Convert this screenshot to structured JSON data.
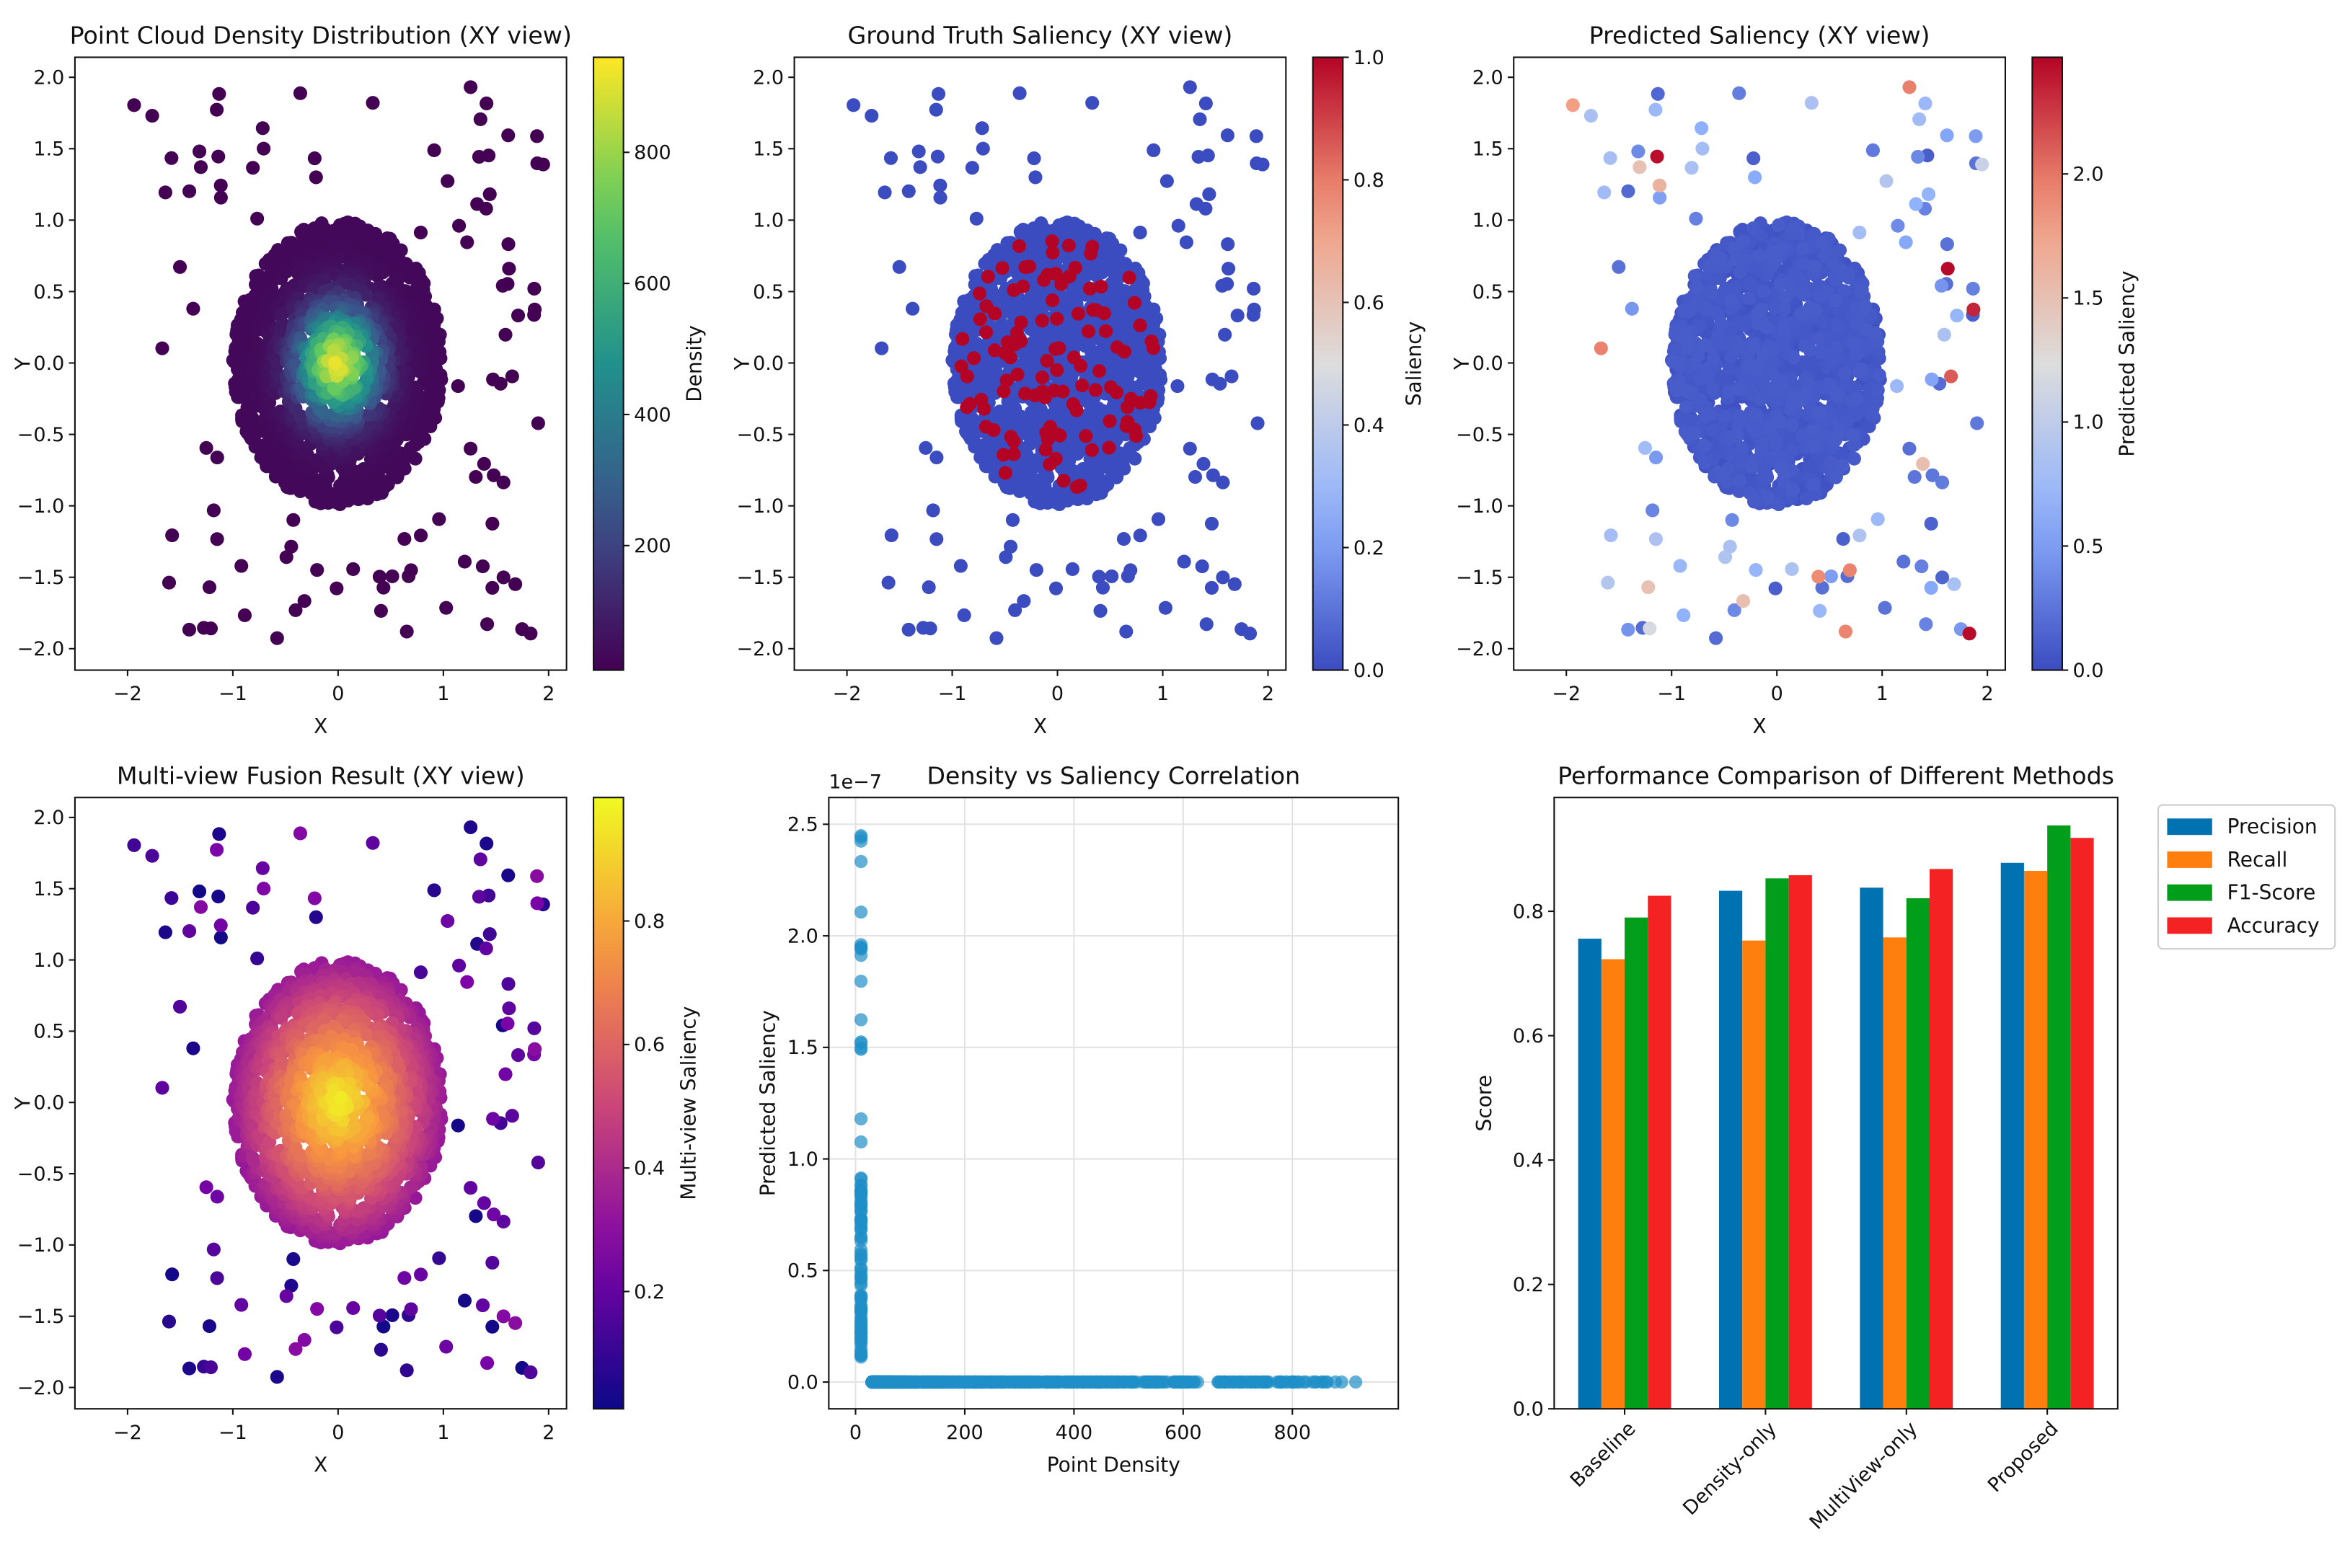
{
  "chart_data": [
    {
      "type": "scatter",
      "title": "Point Cloud Density Distribution (XY view)",
      "xlabel": "X",
      "ylabel": "Y",
      "xticks": [
        "−2",
        "−1",
        "0",
        "1",
        "2"
      ],
      "xtick_values": [
        -2,
        -1,
        0,
        1,
        2
      ],
      "yticks": [
        "2.0",
        "1.5",
        "1.0",
        "0.5",
        "0.0",
        "−0.5",
        "−1.0",
        "−1.5",
        "−2.0"
      ],
      "ytick_values": [
        2,
        1.5,
        1,
        0.5,
        0,
        -0.5,
        -1,
        -1.5,
        -2
      ],
      "xlim": [
        -2.5,
        2.17
      ],
      "ylim": [
        -2.15,
        2.14
      ],
      "color_by": "density",
      "colorbar": {
        "label": "Density",
        "cmap": "viridis",
        "range": [
          10,
          945
        ],
        "ticks": [
          "800",
          "600",
          "400",
          "200"
        ],
        "tick_values": [
          800,
          600,
          400,
          200
        ]
      }
    },
    {
      "type": "scatter",
      "title": "Ground Truth Saliency (XY view)",
      "xlabel": "X",
      "ylabel": "Y",
      "xticks": [
        "−2",
        "−1",
        "0",
        "1",
        "2"
      ],
      "xtick_values": [
        -2,
        -1,
        0,
        1,
        2
      ],
      "yticks": [
        "2.0",
        "1.5",
        "1.0",
        "0.5",
        "0.0",
        "−0.5",
        "−1.0",
        "−1.5",
        "−2.0"
      ],
      "ytick_values": [
        2,
        1.5,
        1,
        0.5,
        0,
        -0.5,
        -1,
        -1.5,
        -2
      ],
      "xlim": [
        -2.5,
        2.17
      ],
      "ylim": [
        -2.15,
        2.14
      ],
      "color_by": "ground_truth",
      "colorbar": {
        "label": "Saliency",
        "cmap": "coolwarm",
        "range": [
          0,
          1
        ],
        "ticks": [
          "1.0",
          "0.8",
          "0.6",
          "0.4",
          "0.2",
          "0.0"
        ],
        "tick_values": [
          1,
          0.8,
          0.6,
          0.4,
          0.2,
          0
        ]
      }
    },
    {
      "type": "scatter",
      "title": "Predicted Saliency (XY view)",
      "xlabel": "X",
      "ylabel": "Y",
      "xticks": [
        "−2",
        "−1",
        "0",
        "1",
        "2"
      ],
      "xtick_values": [
        -2,
        -1,
        0,
        1,
        2
      ],
      "yticks": [
        "2.0",
        "1.5",
        "1.0",
        "0.5",
        "0.0",
        "−0.5",
        "−1.0",
        "−1.5",
        "−2.0"
      ],
      "ytick_values": [
        2,
        1.5,
        1,
        0.5,
        0,
        -0.5,
        -1,
        -1.5,
        -2
      ],
      "xlim": [
        -2.5,
        2.17
      ],
      "ylim": [
        -2.15,
        2.14
      ],
      "color_by": "predicted",
      "colorbar": {
        "label": "Predicted Saliency",
        "cmap": "coolwarm",
        "range": [
          0,
          2.47
        ],
        "ticks": [
          "2.0",
          "1.5",
          "1.0",
          "0.5",
          "0.0"
        ],
        "tick_values": [
          2,
          1.5,
          1,
          0.5,
          0
        ]
      }
    },
    {
      "type": "scatter",
      "title": "Multi-view Fusion Result (XY view)",
      "xlabel": "X",
      "ylabel": "Y",
      "xticks": [
        "−2",
        "−1",
        "0",
        "1",
        "2"
      ],
      "xtick_values": [
        -2,
        -1,
        0,
        1,
        2
      ],
      "yticks": [
        "2.0",
        "1.5",
        "1.0",
        "0.5",
        "0.0",
        "−0.5",
        "−1.0",
        "−1.5",
        "−2.0"
      ],
      "ytick_values": [
        2,
        1.5,
        1,
        0.5,
        0,
        -0.5,
        -1,
        -1.5,
        -2
      ],
      "xlim": [
        -2.5,
        2.17
      ],
      "ylim": [
        -2.15,
        2.14
      ],
      "color_by": "fusion",
      "colorbar": {
        "label": "Multi-view Saliency",
        "cmap": "plasma",
        "range": [
          0.01,
          1.0
        ],
        "ticks": [
          "0.8",
          "0.6",
          "0.4",
          "0.2"
        ],
        "tick_values": [
          0.8,
          0.6,
          0.4,
          0.2
        ]
      }
    },
    {
      "type": "scatter",
      "title": "Density vs Saliency Correlation",
      "xlabel": "Point Density",
      "ylabel": "Predicted Saliency",
      "offset_text": "1e−7",
      "xticks": [
        "0",
        "200",
        "400",
        "600",
        "800"
      ],
      "xtick_values": [
        0,
        200,
        400,
        600,
        800
      ],
      "yticks": [
        "2.5",
        "2.0",
        "1.5",
        "1.0",
        "0.5",
        "0.0"
      ],
      "ytick_values": [
        2.5,
        2.0,
        1.5,
        1.0,
        0.5,
        0.0
      ],
      "xlim": [
        -49,
        994
      ],
      "ylim": [
        -0.12,
        2.62
      ],
      "grid": true,
      "color": "#1f8fc8"
    },
    {
      "type": "bar",
      "title": "Performance Comparison of Different Methods",
      "xlabel": "",
      "ylabel": "Score",
      "categories": [
        "Baseline",
        "Density-only",
        "MultiView-only",
        "Proposed"
      ],
      "series": [
        {
          "name": "Precision",
          "color": "#0072b2",
          "values": [
            0.756,
            0.833,
            0.838,
            0.878
          ]
        },
        {
          "name": "Recall",
          "color": "#ff7f0e",
          "values": [
            0.723,
            0.753,
            0.758,
            0.865
          ]
        },
        {
          "name": "F1-Score",
          "color": "#009e1a",
          "values": [
            0.79,
            0.853,
            0.821,
            0.938
          ]
        },
        {
          "name": "Accuracy",
          "color": "#f42222",
          "values": [
            0.825,
            0.858,
            0.868,
            0.918
          ]
        }
      ],
      "yticks": [
        "0.0",
        "0.2",
        "0.4",
        "0.6",
        "0.8"
      ],
      "ytick_values": [
        0,
        0.2,
        0.4,
        0.6,
        0.8
      ],
      "ylim": [
        0,
        0.983
      ],
      "legend": "upper-right-outside"
    }
  ]
}
